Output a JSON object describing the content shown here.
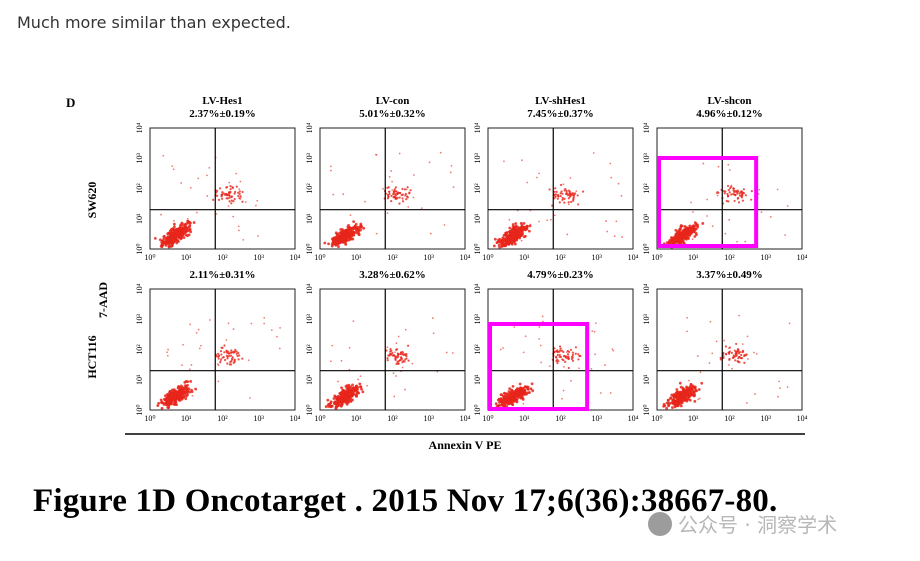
{
  "post": {
    "comment": "Much more similar than expected.",
    "figure_caption": "Figure 1D Oncotarget . 2015 Nov 17;6(36):38667-80.",
    "watermark": "公众号 · 洞察学术"
  },
  "figure": {
    "panel_label": "D",
    "y_axis_label": "7-AAD",
    "x_axis_label": "Annexin V PE",
    "row_labels": [
      "SW620",
      "HCT116"
    ],
    "columns": [
      "LV-Hes1",
      "LV-con",
      "LV-shHes1",
      "LV-shcon"
    ],
    "row1_values": [
      "2.37%±0.19%",
      "5.01%±0.32%",
      "7.45%±0.37%",
      "4.96%±0.12%"
    ],
    "row2_values": [
      "2.11%±0.31%",
      "3.28%±0.62%",
      "4.79%±0.23%",
      "3.37%±0.49%"
    ],
    "x_ticks": [
      "10⁰",
      "10¹",
      "10²",
      "10³",
      "10⁴"
    ],
    "y_ticks": [
      "10⁰",
      "10¹",
      "10²",
      "10³",
      "10⁴"
    ],
    "highlights": [
      {
        "row": 0,
        "col": 3
      },
      {
        "row": 1,
        "col": 2
      }
    ],
    "highlight_color": "#ff00ff",
    "dot_color": "#e8261b",
    "gate_x_log": 1.8,
    "gate_y_log": 1.3
  }
}
